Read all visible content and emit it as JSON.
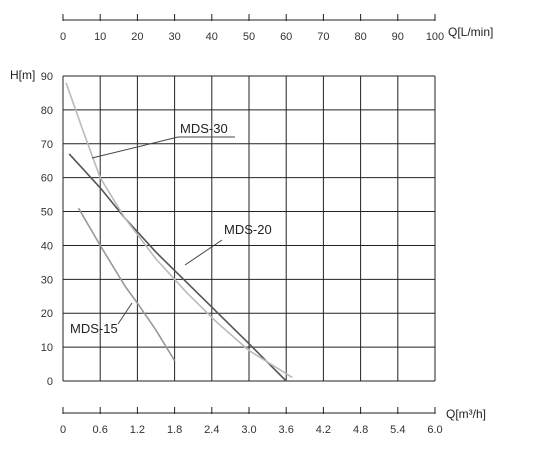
{
  "chart_data": {
    "type": "line",
    "title": "",
    "xlabel": "Q[m³/h]",
    "ylabel": "H[m]",
    "x2label": "Q[L/min]",
    "xlim": [
      0,
      6.0
    ],
    "ylim": [
      0,
      90
    ],
    "x2lim": [
      0,
      100
    ],
    "grid": true,
    "xticks": [
      "0",
      "0.6",
      "1.2",
      "1.8",
      "2.4",
      "3.0",
      "3.6",
      "4.2",
      "4.8",
      "5.4",
      "6.0"
    ],
    "x2ticks": [
      "0",
      "10",
      "20",
      "30",
      "40",
      "50",
      "60",
      "70",
      "80",
      "90",
      "100"
    ],
    "yticks": [
      "0",
      "10",
      "20",
      "30",
      "40",
      "50",
      "60",
      "70",
      "80",
      "90"
    ],
    "series": [
      {
        "name": "MDS-15",
        "color": "#999999",
        "x": [
          0.25,
          0.6,
          1.0,
          1.2,
          1.5,
          1.8
        ],
        "y": [
          51,
          40,
          28,
          23,
          15,
          6
        ]
      },
      {
        "name": "MDS-20",
        "color": "#555555",
        "x": [
          0.1,
          0.6,
          1.0,
          1.5,
          2.0,
          2.5,
          3.0,
          3.6
        ],
        "y": [
          67,
          57,
          48,
          38,
          29,
          20,
          11,
          0
        ]
      },
      {
        "name": "MDS-30",
        "color": "#bbbbbb",
        "x": [
          0.05,
          0.3,
          0.6,
          1.0,
          1.5,
          2.0,
          2.5,
          3.0,
          3.7
        ],
        "y": [
          88,
          75,
          60,
          48,
          36,
          26,
          17,
          9,
          1
        ]
      }
    ]
  }
}
